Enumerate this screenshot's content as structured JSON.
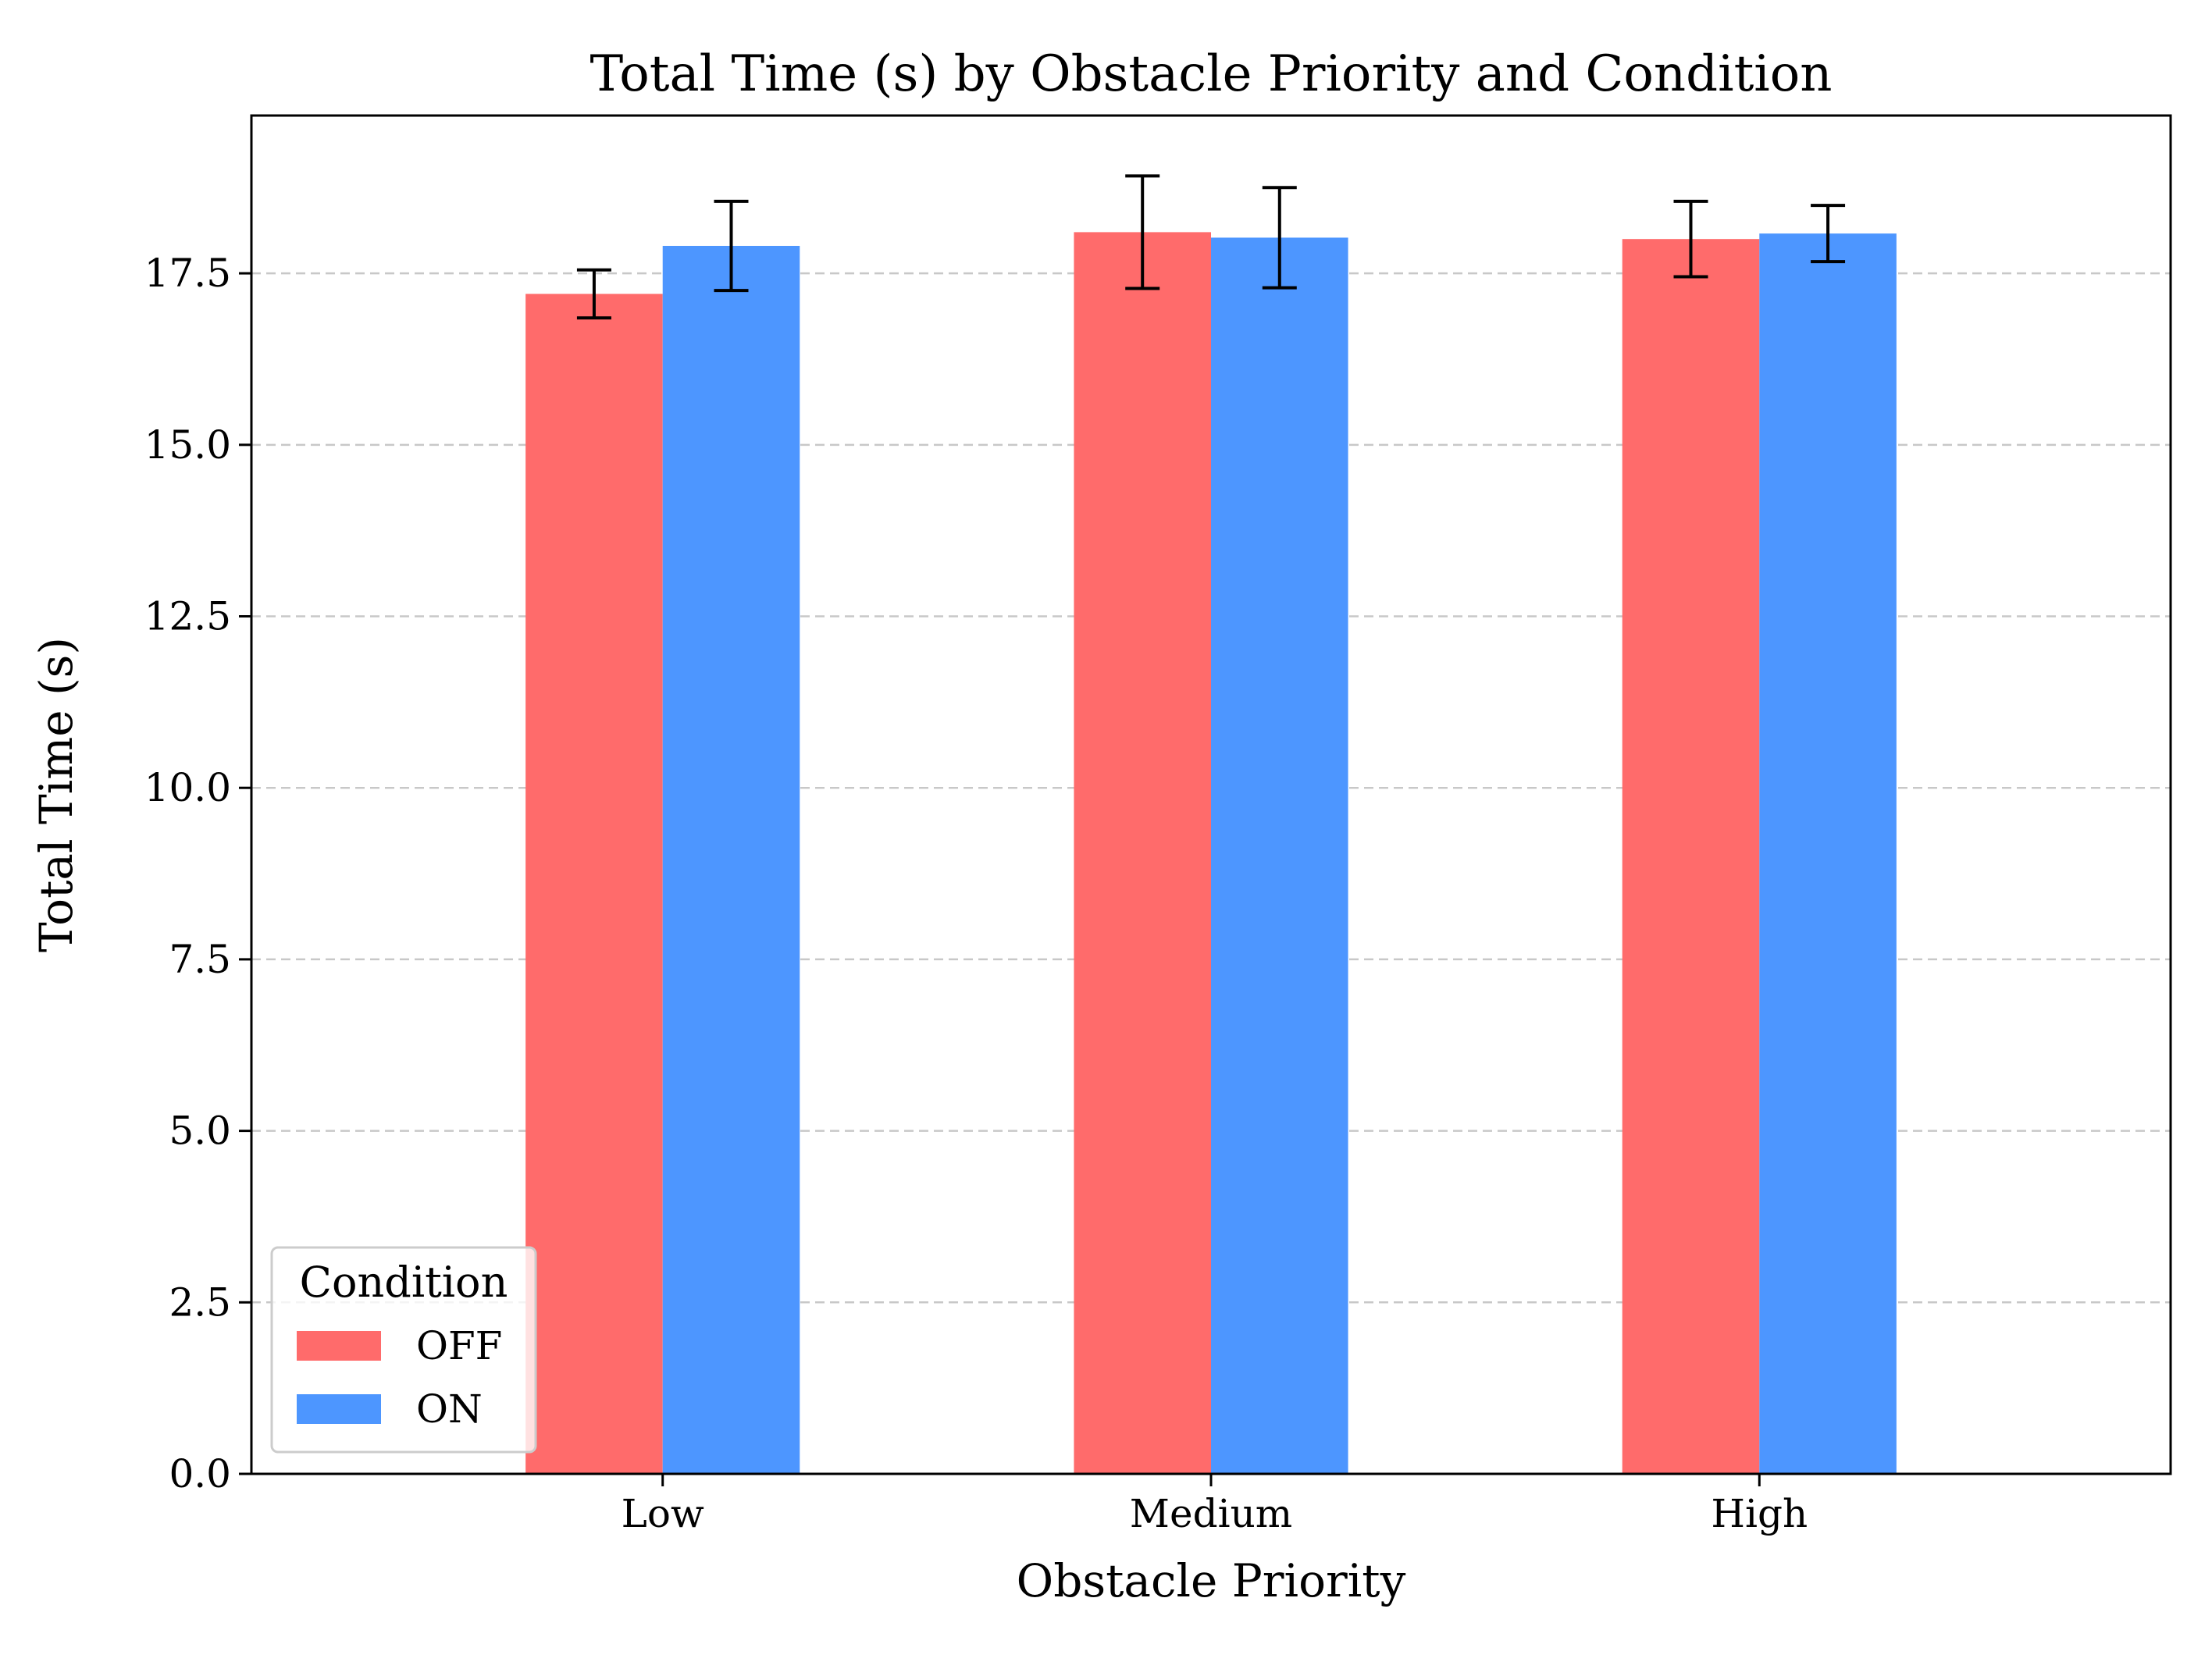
{
  "chart_data": {
    "type": "bar",
    "title": "Total Time (s) by Obstacle Priority and Condition",
    "xlabel": "Obstacle Priority",
    "ylabel": "Total Time (s)",
    "categories": [
      "Low",
      "Medium",
      "High"
    ],
    "series": [
      {
        "name": "OFF",
        "color": "#ff6b6b",
        "values": [
          17.2,
          18.1,
          18.0
        ],
        "errors": [
          0.35,
          0.82,
          0.55
        ]
      },
      {
        "name": "ON",
        "color": "#4d96ff",
        "values": [
          17.9,
          18.02,
          18.08
        ],
        "errors": [
          0.65,
          0.73,
          0.41
        ]
      }
    ],
    "ylim": [
      0,
      19.8
    ],
    "yticks": [
      0.0,
      2.5,
      5.0,
      7.5,
      10.0,
      12.5,
      15.0,
      17.5
    ],
    "ytick_labels": [
      "0.0",
      "2.5",
      "5.0",
      "7.5",
      "10.0",
      "12.5",
      "15.0",
      "17.5"
    ],
    "grid": "y-dashed",
    "legend": {
      "title": "Condition",
      "placement": "lower-left"
    }
  }
}
